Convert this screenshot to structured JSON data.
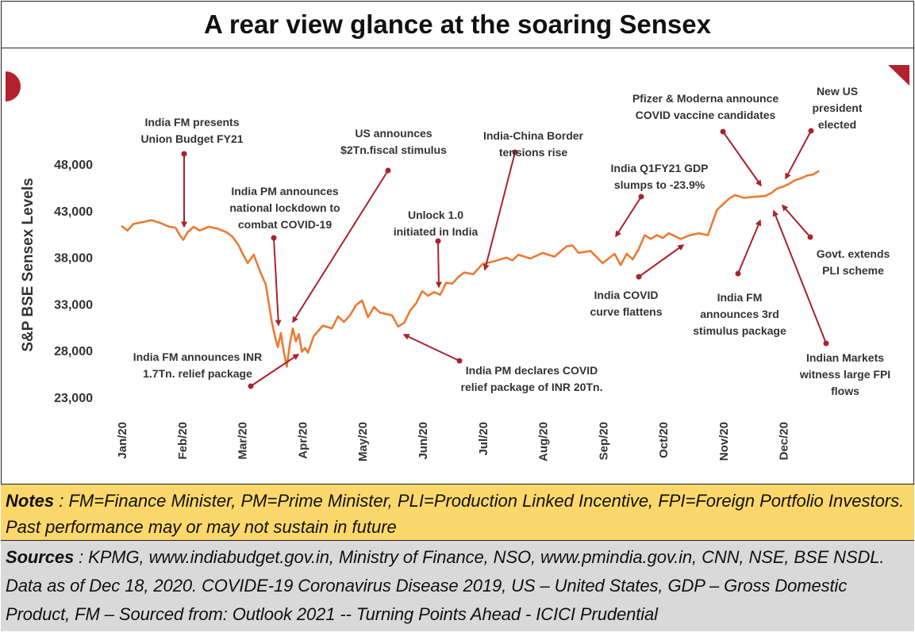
{
  "title": "A rear view glance at the soaring Sensex",
  "notes": {
    "label": "Notes",
    "text": " : FM=Finance Minister, PM=Prime Minister, PLI=Production Linked Incentive, FPI=Foreign Portfolio Investors. Past performance may or may not sustain in future"
  },
  "sources": {
    "label": "Sources",
    "text": " : KPMG, www.indiabudget.gov.in, Ministry of Finance, NSO, www.pmindia.gov.in, CNN, NSE, BSE NSDL. Data as of Dec 18, 2020. COVIDE-19 Coronavirus Disease 2019, US – United States, GDP – Gross Domestic Product, FM – Sourced from: Outlook 2021 -- Turning Points Ahead - ICICI Prudential"
  },
  "colors": {
    "line": "#ec7a33",
    "arrow": "#a8242b",
    "text": "#333333"
  },
  "chart_data": {
    "type": "line",
    "title": "A rear view glance at the soaring Sensex",
    "ylabel": "S&P BSE Sensex Levels",
    "xlabel": "",
    "ylim": [
      23000,
      48000
    ],
    "xlim": [
      0,
      11.65
    ],
    "yticks": [
      23000,
      28000,
      33000,
      38000,
      43000,
      48000
    ],
    "ytick_labels": [
      "23,000",
      "28,000",
      "33,000",
      "38,000",
      "43,000",
      "48,000"
    ],
    "xtick_labels": [
      "Jan/20",
      "Feb/20",
      "Mar/20",
      "Apr/20",
      "May/20",
      "Jun/20",
      "Jul/20",
      "Aug/20",
      "Sep/20",
      "Oct/20",
      "Nov/20",
      "Dec/20"
    ],
    "series": [
      {
        "name": "S&P BSE Sensex",
        "x": [
          0,
          0.1,
          0.2,
          0.35,
          0.5,
          0.65,
          0.8,
          0.9,
          0.97,
          1.03,
          1.1,
          1.2,
          1.3,
          1.45,
          1.6,
          1.75,
          1.85,
          1.95,
          2.0,
          2.1,
          2.2,
          2.3,
          2.4,
          2.45,
          2.5,
          2.55,
          2.6,
          2.65,
          2.7,
          2.75,
          2.8,
          2.85,
          2.9,
          2.95,
          3.0,
          3.05,
          3.1,
          3.2,
          3.35,
          3.5,
          3.6,
          3.7,
          3.8,
          3.9,
          4.0,
          4.1,
          4.2,
          4.3,
          4.5,
          4.6,
          4.7,
          4.8,
          4.9,
          5.0,
          5.1,
          5.2,
          5.3,
          5.4,
          5.5,
          5.6,
          5.7,
          5.85,
          6.0,
          6.2,
          6.4,
          6.5,
          6.6,
          6.8,
          7.0,
          7.2,
          7.4,
          7.5,
          7.6,
          7.8,
          8.0,
          8.2,
          8.3,
          8.4,
          8.5,
          8.6,
          8.7,
          8.8,
          8.9,
          9.0,
          9.1,
          9.3,
          9.45,
          9.6,
          9.75,
          9.9,
          10.0,
          10.1,
          10.2,
          10.35,
          10.5,
          10.7,
          10.8,
          10.9,
          11.0,
          11.1,
          11.2,
          11.3,
          11.4,
          11.5,
          11.6
        ],
        "values": [
          41300,
          40800,
          41500,
          41700,
          41900,
          41600,
          41200,
          41100,
          40300,
          39800,
          40600,
          41200,
          40800,
          41200,
          41000,
          40600,
          40100,
          39200,
          38500,
          37300,
          38200,
          36500,
          35000,
          33000,
          31000,
          29500,
          28300,
          29800,
          27800,
          26200,
          28600,
          30300,
          28900,
          29700,
          27800,
          28200,
          27700,
          29500,
          30600,
          30300,
          31600,
          31000,
          31700,
          32800,
          33300,
          31500,
          32600,
          32000,
          31700,
          30500,
          30900,
          32200,
          33000,
          34300,
          33800,
          34200,
          33900,
          35200,
          35100,
          35800,
          36300,
          36100,
          37200,
          37500,
          37900,
          37600,
          38200,
          37800,
          38400,
          38000,
          39100,
          39200,
          38400,
          38600,
          37300,
          38300,
          37100,
          38300,
          37700,
          38800,
          40300,
          39900,
          40300,
          40000,
          40500,
          39900,
          40300,
          40500,
          40300,
          43000,
          43600,
          44200,
          44600,
          44300,
          44400,
          44500,
          44800,
          45300,
          45500,
          45800,
          46200,
          46400,
          46700,
          46800,
          47200
        ]
      }
    ],
    "annotations": [
      "India FM presents Union Budget FY21",
      "India PM announces national lockdown to combat COVID-19",
      "US announces $2Tn.fiscal stimulus",
      "India-China Border tensions rise",
      "Unlock 1.0 initiated in India",
      "India FM announces INR 1.7Tn. relief package",
      "India PM declares COVID relief package of INR 20Tn.",
      "India Q1FY21 GDP slumps to -23.9%",
      "India COVID curve flattens",
      "Pfizer & Moderna announce COVID vaccine candidates",
      "New US president elected",
      "Govt. extends PLI scheme",
      "India FM announces 3rd stimulus package",
      "Indian Markets witness large FPI flows"
    ]
  }
}
